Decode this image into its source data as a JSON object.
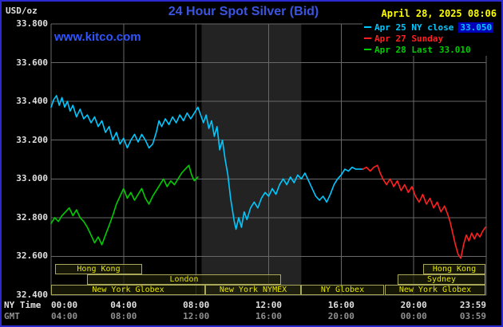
{
  "header": {
    "unit_label": "USD/oz",
    "title": "24 Hour Spot Silver (Bid)",
    "datetime": "April 28, 2025 08:06",
    "watermark": "www.kitco.com"
  },
  "legend": {
    "items": [
      {
        "label": "Apr 25 NY close",
        "value": "33.050",
        "color": "#00c8ff",
        "value_bg": "#0000bb"
      },
      {
        "label": "Apr 27 Sunday",
        "value": "",
        "color": "#ff2020",
        "value_bg": ""
      },
      {
        "label": "Apr 28 Last",
        "value": "33.010",
        "color": "#00cc00",
        "value_bg": ""
      }
    ]
  },
  "axes": {
    "ny_time_label": "NY Time",
    "gmt_label": "GMT",
    "ny_ticks": [
      "00:00",
      "04:00",
      "08:00",
      "12:00",
      "16:00",
      "20:00",
      "23:59"
    ],
    "gmt_ticks": [
      "04:00",
      "08:00",
      "12:00",
      "16:00",
      "20:00",
      "00:00",
      "03:59"
    ],
    "y_tick_labels": [
      "33.800",
      "33.600",
      "33.400",
      "33.200",
      "33.000",
      "32.800",
      "32.600",
      "32.400"
    ]
  },
  "sessions": [
    {
      "label": "Hong Kong",
      "row": 0,
      "start_hour": 0.2,
      "end_hour": 5.0
    },
    {
      "label": "Hong Kong",
      "row": 0,
      "start_hour": 20.5,
      "end_hour": 23.95
    },
    {
      "label": "London",
      "row": 1,
      "start_hour": 2.0,
      "end_hour": 12.7
    },
    {
      "label": "Sydney",
      "row": 1,
      "start_hour": 19.1,
      "end_hour": 23.95
    },
    {
      "label": "New York Globex",
      "row": 2,
      "start_hour": 0.0,
      "end_hour": 8.5
    },
    {
      "label": "New York NYMEX",
      "row": 2,
      "start_hour": 8.5,
      "end_hour": 13.8
    },
    {
      "label": "NY Globex",
      "row": 2,
      "start_hour": 13.8,
      "end_hour": 18.4
    },
    {
      "label": "New York Globex",
      "row": 2,
      "start_hour": 18.4,
      "end_hour": 23.95
    }
  ],
  "colors": {
    "background": "#000000",
    "frame": "#2a2ace",
    "grid": "#686868",
    "band": "#232323",
    "session_border": "#a8a858",
    "session_text": "#e6e600",
    "axis_text": "#e0e0e0",
    "gmt_text": "#909090",
    "title": "#3b55e0",
    "watermark": "#2f55ff",
    "datetime": "#ffff00"
  },
  "chart_data": {
    "type": "line",
    "title": "24 Hour Spot Silver (Bid)",
    "ylabel": "USD/oz",
    "xlabel": "NY Time (hours)",
    "xlim": [
      0,
      24
    ],
    "ylim": [
      32.4,
      33.8
    ],
    "y_ticks": [
      33.8,
      33.6,
      33.4,
      33.2,
      33.0,
      32.8,
      32.6,
      32.4
    ],
    "x_tick_hours": [
      0,
      4,
      8,
      12,
      16,
      20,
      24
    ],
    "grid": true,
    "legend_position": "top-right",
    "highlight_band_hours": [
      8.3,
      13.8
    ],
    "series": [
      {
        "name": "Apr 25 NY close 33.050",
        "color": "#00c8ff",
        "points": [
          [
            0,
            33.37
          ],
          [
            0.15,
            33.41
          ],
          [
            0.3,
            33.43
          ],
          [
            0.45,
            33.38
          ],
          [
            0.6,
            33.42
          ],
          [
            0.75,
            33.37
          ],
          [
            0.9,
            33.4
          ],
          [
            1.05,
            33.35
          ],
          [
            1.2,
            33.38
          ],
          [
            1.4,
            33.32
          ],
          [
            1.6,
            33.36
          ],
          [
            1.8,
            33.31
          ],
          [
            2,
            33.33
          ],
          [
            2.2,
            33.29
          ],
          [
            2.4,
            33.32
          ],
          [
            2.6,
            33.27
          ],
          [
            2.8,
            33.3
          ],
          [
            3,
            33.24
          ],
          [
            3.2,
            33.27
          ],
          [
            3.4,
            33.2
          ],
          [
            3.6,
            33.24
          ],
          [
            3.8,
            33.18
          ],
          [
            4,
            33.21
          ],
          [
            4.2,
            33.16
          ],
          [
            4.4,
            33.2
          ],
          [
            4.6,
            33.23
          ],
          [
            4.8,
            33.19
          ],
          [
            5,
            33.23
          ],
          [
            5.2,
            33.2
          ],
          [
            5.4,
            33.16
          ],
          [
            5.6,
            33.18
          ],
          [
            5.8,
            33.24
          ],
          [
            5.95,
            33.3
          ],
          [
            6.1,
            33.27
          ],
          [
            6.3,
            33.31
          ],
          [
            6.5,
            33.28
          ],
          [
            6.7,
            33.32
          ],
          [
            6.9,
            33.29
          ],
          [
            7.1,
            33.33
          ],
          [
            7.3,
            33.3
          ],
          [
            7.5,
            33.34
          ],
          [
            7.7,
            33.31
          ],
          [
            7.9,
            33.34
          ],
          [
            8.1,
            33.37
          ],
          [
            8.25,
            33.33
          ],
          [
            8.4,
            33.29
          ],
          [
            8.55,
            33.33
          ],
          [
            8.7,
            33.26
          ],
          [
            8.85,
            33.3
          ],
          [
            9,
            33.22
          ],
          [
            9.15,
            33.27
          ],
          [
            9.3,
            33.15
          ],
          [
            9.45,
            33.2
          ],
          [
            9.6,
            33.1
          ],
          [
            9.75,
            33.02
          ],
          [
            9.9,
            32.9
          ],
          [
            10,
            32.84
          ],
          [
            10.1,
            32.78
          ],
          [
            10.2,
            32.74
          ],
          [
            10.35,
            32.8
          ],
          [
            10.5,
            32.75
          ],
          [
            10.65,
            32.83
          ],
          [
            10.8,
            32.79
          ],
          [
            11,
            32.85
          ],
          [
            11.2,
            32.88
          ],
          [
            11.4,
            32.85
          ],
          [
            11.6,
            32.9
          ],
          [
            11.8,
            32.93
          ],
          [
            12,
            32.91
          ],
          [
            12.2,
            32.95
          ],
          [
            12.4,
            32.92
          ],
          [
            12.6,
            32.97
          ],
          [
            12.8,
            33
          ],
          [
            13,
            32.97
          ],
          [
            13.2,
            33.01
          ],
          [
            13.4,
            32.98
          ],
          [
            13.6,
            33.02
          ],
          [
            13.8,
            33
          ],
          [
            14,
            33.03
          ],
          [
            14.2,
            32.99
          ],
          [
            14.4,
            32.95
          ],
          [
            14.6,
            32.91
          ],
          [
            14.8,
            32.89
          ],
          [
            15,
            32.91
          ],
          [
            15.2,
            32.88
          ],
          [
            15.4,
            32.92
          ],
          [
            15.6,
            32.97
          ],
          [
            15.8,
            33
          ],
          [
            16,
            33.02
          ],
          [
            16.2,
            33.05
          ],
          [
            16.4,
            33.04
          ],
          [
            16.6,
            33.06
          ],
          [
            16.8,
            33.05
          ],
          [
            17,
            33.05
          ],
          [
            17.2,
            33.05
          ]
        ]
      },
      {
        "name": "Apr 27 Sunday",
        "color": "#ff2020",
        "points": [
          [
            17.2,
            33.05
          ],
          [
            17.4,
            33.06
          ],
          [
            17.6,
            33.04
          ],
          [
            17.8,
            33.06
          ],
          [
            18,
            33.07
          ],
          [
            18.15,
            33.03
          ],
          [
            18.3,
            33
          ],
          [
            18.5,
            32.97
          ],
          [
            18.7,
            33
          ],
          [
            18.9,
            32.96
          ],
          [
            19.1,
            32.99
          ],
          [
            19.3,
            32.94
          ],
          [
            19.5,
            32.97
          ],
          [
            19.7,
            32.93
          ],
          [
            19.9,
            32.96
          ],
          [
            20.1,
            32.91
          ],
          [
            20.3,
            32.88
          ],
          [
            20.5,
            32.92
          ],
          [
            20.7,
            32.87
          ],
          [
            20.9,
            32.9
          ],
          [
            21.1,
            32.85
          ],
          [
            21.3,
            32.88
          ],
          [
            21.5,
            32.83
          ],
          [
            21.7,
            32.86
          ],
          [
            21.9,
            32.81
          ],
          [
            22,
            32.78
          ],
          [
            22.15,
            32.72
          ],
          [
            22.3,
            32.66
          ],
          [
            22.45,
            32.61
          ],
          [
            22.6,
            32.59
          ],
          [
            22.75,
            32.66
          ],
          [
            22.9,
            32.71
          ],
          [
            23.05,
            32.68
          ],
          [
            23.2,
            32.72
          ],
          [
            23.35,
            32.69
          ],
          [
            23.5,
            32.72
          ],
          [
            23.65,
            32.7
          ],
          [
            23.8,
            32.73
          ],
          [
            23.95,
            32.75
          ]
        ]
      },
      {
        "name": "Apr 28 Last 33.010",
        "color": "#00cc00",
        "points": [
          [
            0,
            32.77
          ],
          [
            0.2,
            32.8
          ],
          [
            0.4,
            32.78
          ],
          [
            0.6,
            32.81
          ],
          [
            0.8,
            32.83
          ],
          [
            1,
            32.85
          ],
          [
            1.2,
            32.81
          ],
          [
            1.4,
            32.84
          ],
          [
            1.6,
            32.8
          ],
          [
            1.8,
            32.78
          ],
          [
            2,
            32.75
          ],
          [
            2.2,
            32.71
          ],
          [
            2.4,
            32.67
          ],
          [
            2.6,
            32.7
          ],
          [
            2.8,
            32.66
          ],
          [
            3,
            32.71
          ],
          [
            3.2,
            32.76
          ],
          [
            3.4,
            32.81
          ],
          [
            3.6,
            32.87
          ],
          [
            3.8,
            32.91
          ],
          [
            4,
            32.95
          ],
          [
            4.2,
            32.9
          ],
          [
            4.4,
            32.93
          ],
          [
            4.6,
            32.89
          ],
          [
            4.8,
            32.92
          ],
          [
            5,
            32.95
          ],
          [
            5.2,
            32.9
          ],
          [
            5.4,
            32.87
          ],
          [
            5.6,
            32.91
          ],
          [
            5.8,
            32.94
          ],
          [
            6,
            32.97
          ],
          [
            6.2,
            33
          ],
          [
            6.4,
            32.96
          ],
          [
            6.6,
            32.99
          ],
          [
            6.8,
            32.97
          ],
          [
            7,
            33
          ],
          [
            7.2,
            33.03
          ],
          [
            7.4,
            33.05
          ],
          [
            7.6,
            33.07
          ],
          [
            7.75,
            33.02
          ],
          [
            7.9,
            32.99
          ],
          [
            8.1,
            33.01
          ]
        ]
      }
    ]
  }
}
